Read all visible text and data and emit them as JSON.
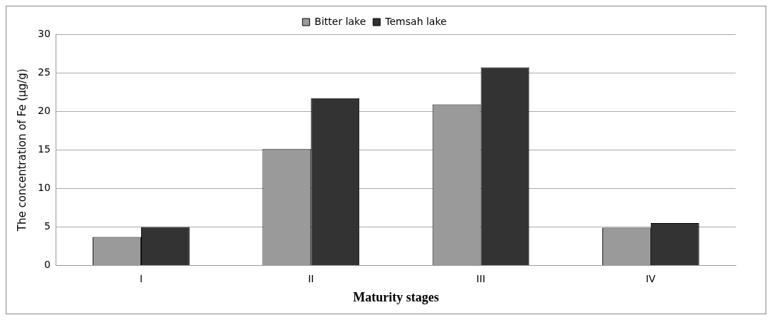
{
  "chart_data": {
    "type": "bar",
    "xlabel": "Maturity stages",
    "ylabel": "The concentration of Fe (μg/g)",
    "categories": [
      "I",
      "II",
      "III",
      "IV"
    ],
    "series": [
      {
        "name": "Bitter lake",
        "color": "#9a9a9a",
        "values": [
          3.7,
          15.1,
          20.9,
          4.9
        ]
      },
      {
        "name": "Temsah lake",
        "color": "#333333",
        "values": [
          5.0,
          21.7,
          25.7,
          5.5
        ]
      }
    ],
    "ylim": [
      0,
      30
    ],
    "yticks": [
      0,
      5,
      10,
      15,
      20,
      25,
      30
    ],
    "grid": "y",
    "legend": "top"
  }
}
